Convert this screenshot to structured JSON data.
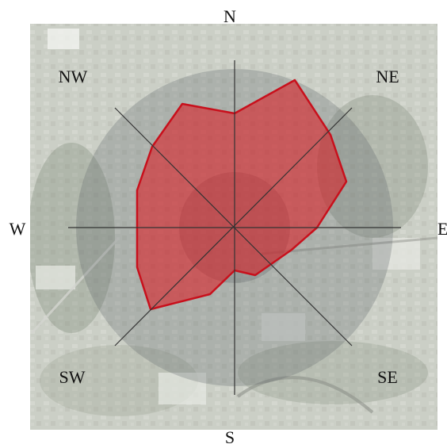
{
  "compass": {
    "N": "N",
    "NE": "NE",
    "E": "E",
    "SE": "SE",
    "S": "S",
    "SW": "SW",
    "W": "W",
    "NW": "NW"
  },
  "colors": {
    "polygon_fill": "#d81f26",
    "polygon_stroke": "#c8101c",
    "axis_line": "#333333",
    "background_map": "#aab0a6"
  }
}
